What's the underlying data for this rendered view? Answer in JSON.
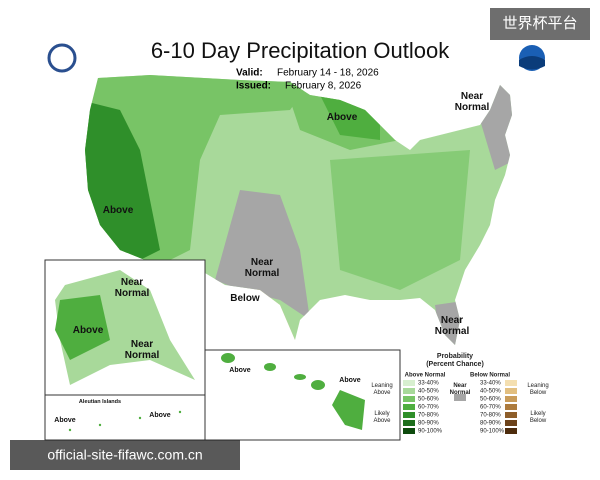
{
  "watermark": "世界杯平台",
  "header": {
    "title": "6-10 Day Precipitation Outlook",
    "valid_label": "Valid:",
    "valid": "February 14 - 18, 2026",
    "issued_label": "Issued:",
    "issued": "February 8, 2026"
  },
  "map_labels": [
    {
      "lines": [
        "Near",
        "Normal"
      ]
    },
    {
      "lines": [
        "Above"
      ]
    },
    {
      "lines": [
        "Above"
      ]
    },
    {
      "lines": [
        "Near",
        "Normal"
      ]
    },
    {
      "lines": [
        "Below"
      ]
    },
    {
      "lines": [
        "Near",
        "Normal"
      ]
    },
    {
      "lines": [
        "Near",
        "Normal"
      ]
    },
    {
      "lines": [
        "Above"
      ]
    },
    {
      "lines": [
        "Near",
        "Normal"
      ]
    },
    {
      "lines": [
        "Above"
      ]
    },
    {
      "lines": [
        "Above"
      ]
    },
    {
      "lines": [
        "Aleutian Islands"
      ]
    },
    {
      "lines": [
        "Above"
      ]
    },
    {
      "lines": [
        "Above"
      ]
    }
  ],
  "legend": {
    "title": [
      "Probability",
      "(Percent Chance)"
    ],
    "above_header": "Above Normal",
    "below_header": "Below Normal",
    "near": [
      "Near",
      "Normal"
    ],
    "leaning_above": [
      "Leaning",
      "Above"
    ],
    "likely_above": [
      "Likely",
      "Above"
    ],
    "leaning_below": [
      "Leaning",
      "Below"
    ],
    "likely_below": [
      "Likely",
      "Below"
    ],
    "above_bins": [
      "33-40%",
      "40-50%",
      "50-60%",
      "60-70%",
      "70-80%",
      "80-90%",
      "90-100%"
    ],
    "below_bins": [
      "33-40%",
      "40-50%",
      "50-60%",
      "60-70%",
      "70-80%",
      "80-90%",
      "90-100%"
    ]
  },
  "footer_watermark": "official-site-fifawc.com.cn"
}
